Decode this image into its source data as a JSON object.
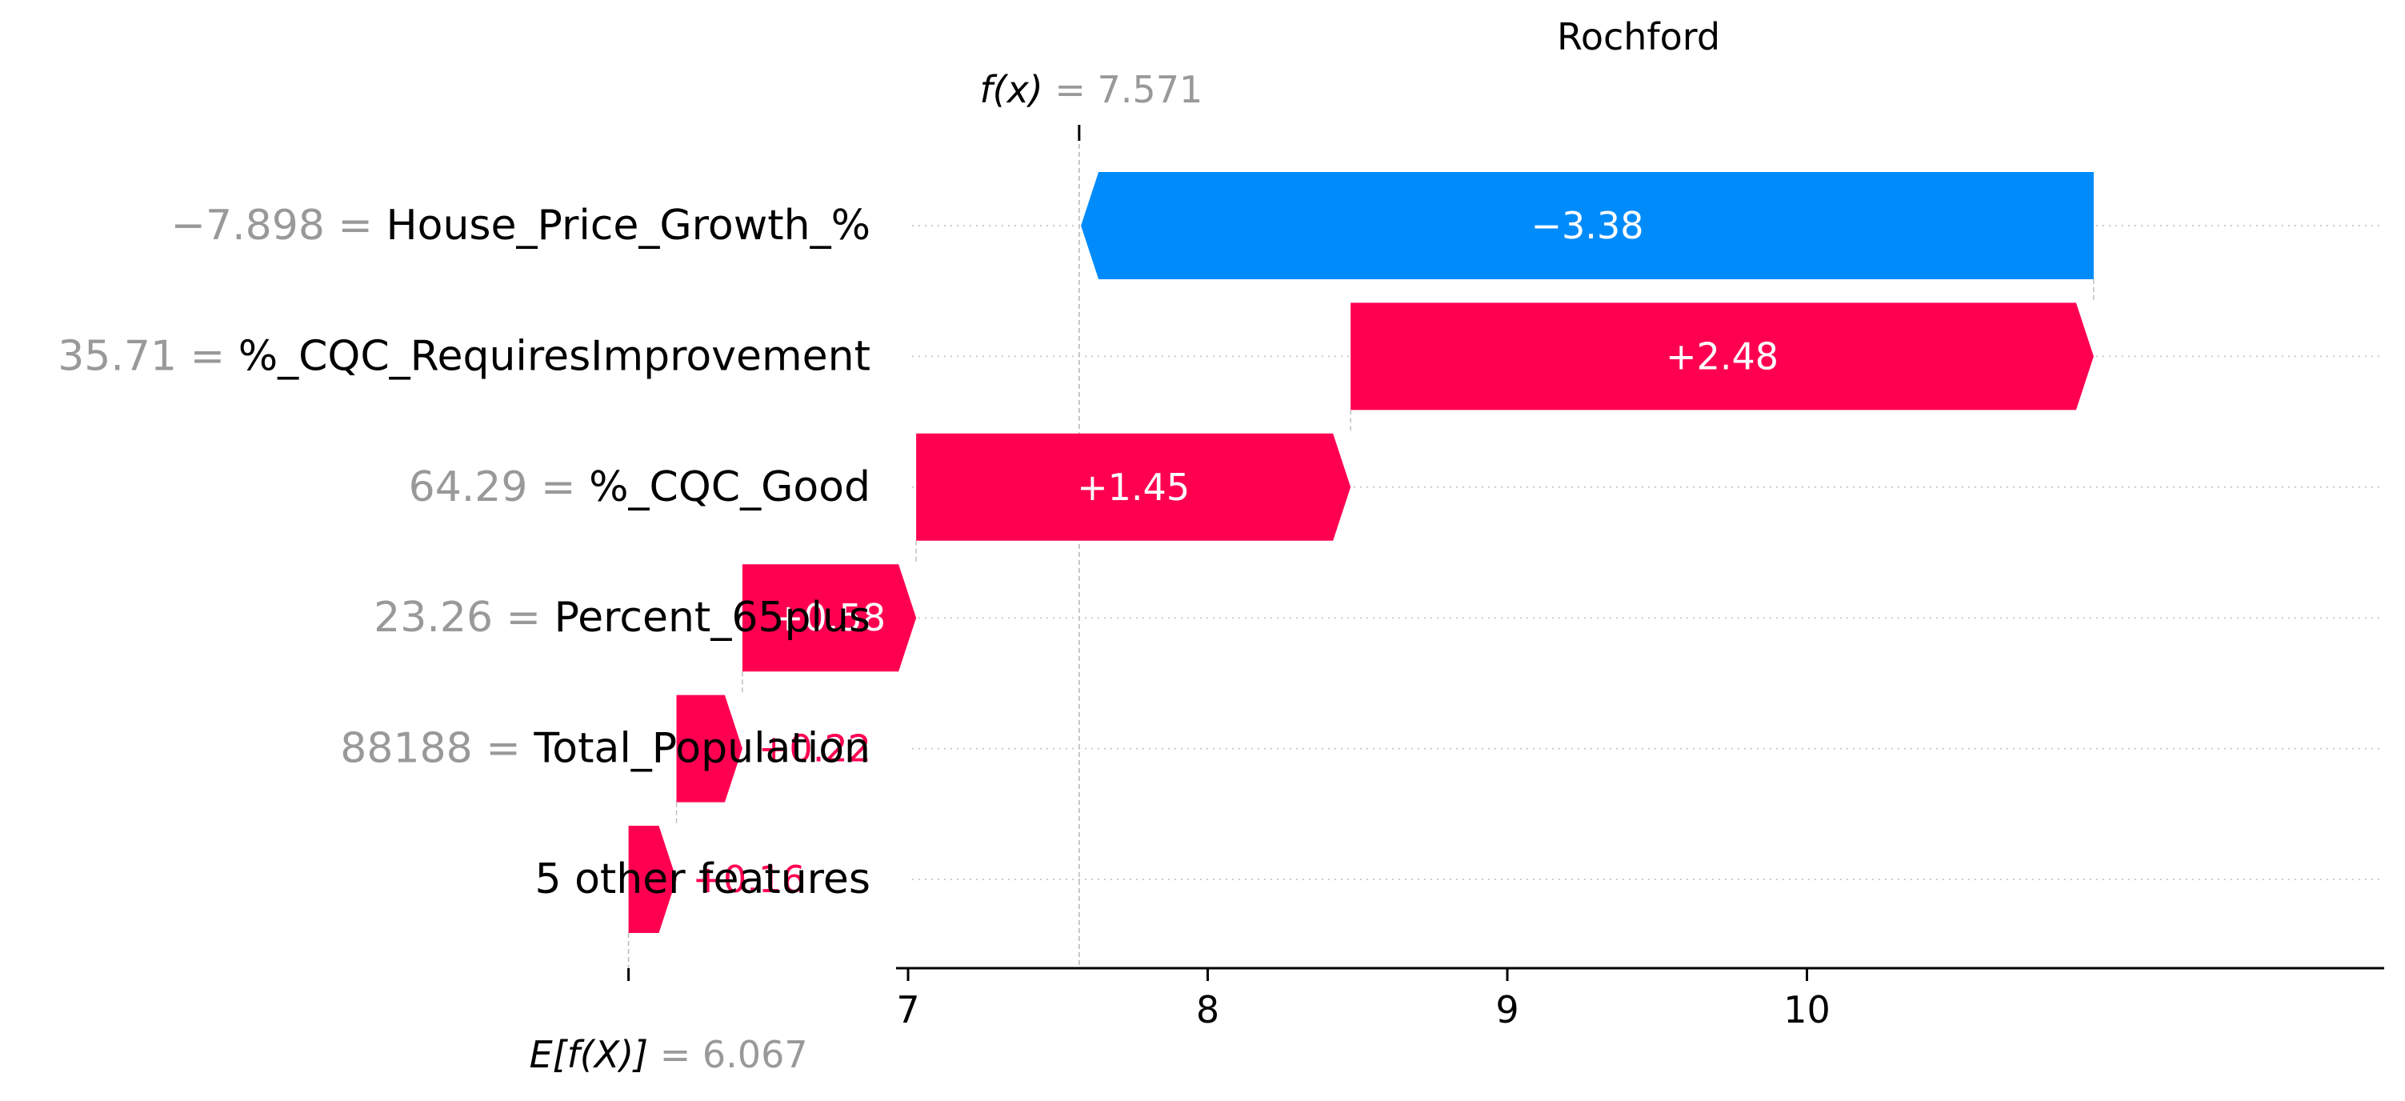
{
  "chart_data": {
    "type": "waterfall",
    "title": "Rochford",
    "fx_label": "f(x)",
    "fx_value": "7.571",
    "base_label": "E[f(X)]",
    "base_value": "6.067",
    "x_ticks": [
      "7",
      "8",
      "9",
      "10"
    ],
    "x_tick_values": [
      7,
      8,
      9,
      10
    ],
    "xlim": [
      5.97,
      10.98
    ],
    "base": 6.067,
    "final": 7.571,
    "features": [
      {
        "value": "−7.898",
        "name": "House_Price_Growth_%",
        "contribution": -3.38,
        "label": "−3.38"
      },
      {
        "value": "35.71",
        "name": "%_CQC_RequiresImprovement",
        "contribution": 2.48,
        "label": "+2.48"
      },
      {
        "value": "64.29",
        "name": "%_CQC_Good",
        "contribution": 1.45,
        "label": "+1.45"
      },
      {
        "value": "23.26",
        "name": "Percent_65plus",
        "contribution": 0.58,
        "label": "+0.58"
      },
      {
        "value": "88188",
        "name": "Total_Population",
        "contribution": 0.22,
        "label": "+0.22"
      },
      {
        "value": "",
        "name": "5 other features",
        "contribution": 0.16,
        "label": "+0.16"
      }
    ],
    "colors": {
      "positive": "#ff0051",
      "negative": "#008bfb",
      "muted": "#999999",
      "text": "#000000"
    }
  }
}
